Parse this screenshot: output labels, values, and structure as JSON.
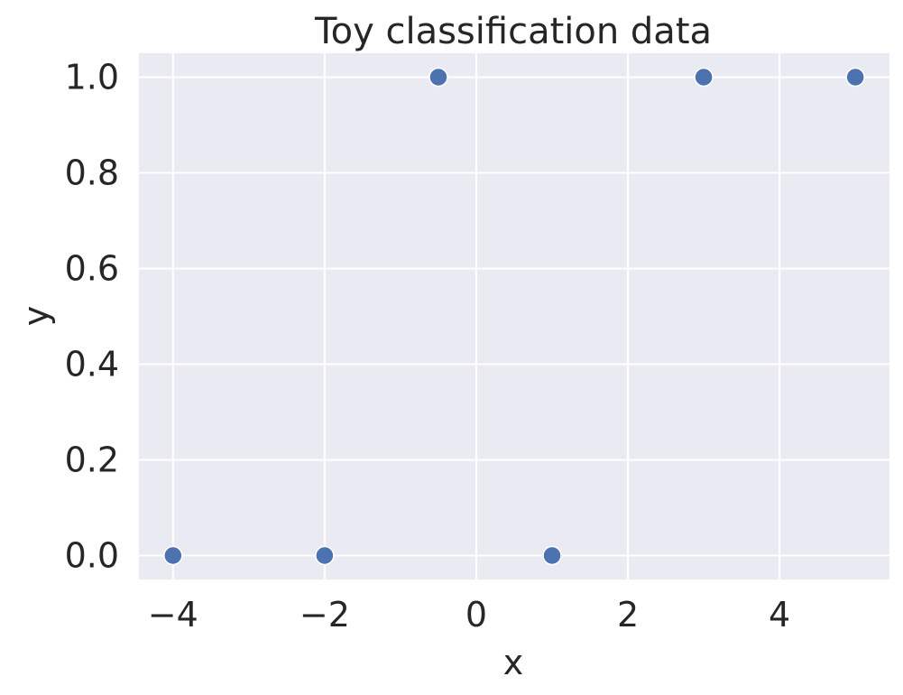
{
  "chart_data": {
    "type": "scatter",
    "title": "Toy classification data",
    "xlabel": "x",
    "ylabel": "y",
    "x": [
      -4,
      -2,
      -0.5,
      1,
      3,
      5
    ],
    "y": [
      0,
      0,
      1,
      0,
      1,
      1
    ],
    "xlim": [
      -4.45,
      5.45
    ],
    "ylim": [
      -0.05,
      1.05
    ],
    "xticks": [
      -4,
      -2,
      0,
      2,
      4
    ],
    "xtick_labels": [
      "−4",
      "−2",
      "0",
      "2",
      "4"
    ],
    "yticks": [
      0.0,
      0.2,
      0.4,
      0.6,
      0.8,
      1.0
    ],
    "ytick_labels": [
      "0.0",
      "0.2",
      "0.4",
      "0.6",
      "0.8",
      "1.0"
    ],
    "grid": true,
    "colors": {
      "background": "#eaeaf2",
      "grid": "#ffffff",
      "marker": "#4c72b0",
      "marker_edge": "#ffffff",
      "text": "#262626"
    }
  }
}
